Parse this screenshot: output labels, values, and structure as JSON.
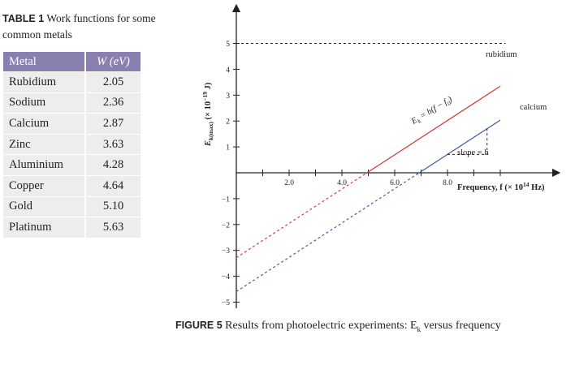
{
  "table": {
    "caption_tag": "TABLE 1",
    "caption_text": "Work functions for some common metals",
    "headers": [
      "Metal",
      "W (eV)"
    ],
    "rows": [
      [
        "Rubidium",
        "2.05"
      ],
      [
        "Sodium",
        "2.36"
      ],
      [
        "Calcium",
        "2.87"
      ],
      [
        "Zinc",
        "3.63"
      ],
      [
        "Aluminium",
        "4.28"
      ],
      [
        "Copper",
        "4.64"
      ],
      [
        "Gold",
        "5.10"
      ],
      [
        "Platinum",
        "5.63"
      ]
    ]
  },
  "figure": {
    "caption_tag": "FIGURE 5",
    "caption_text": "Results from photoelectric experiments: E",
    "caption_sub": "k",
    "caption_tail": " versus frequency"
  },
  "chart_data": {
    "type": "line",
    "xlabel": "Frequency, f (× 10",
    "xlabel_exp": "14",
    "xlabel_tail": " Hz)",
    "ylabel": "E",
    "ylabel_sub": "k(max)",
    "ylabel_tail": " (× 10",
    "ylabel_exp": "−19",
    "ylabel_end": " J)",
    "x_ticks": [
      {
        "value": 2.0,
        "label": "2.0"
      },
      {
        "value": 4.0,
        "label": "4.0"
      },
      {
        "value": 6.0,
        "label": "6.0"
      },
      {
        "value": 8.0,
        "label": "8.0"
      }
    ],
    "y_ticks": [
      {
        "value": 5,
        "label": "5"
      },
      {
        "value": 4,
        "label": "4"
      },
      {
        "value": 3,
        "label": "3"
      },
      {
        "value": 2,
        "label": "2"
      },
      {
        "value": 1,
        "label": "1"
      },
      {
        "value": -1,
        "label": "−1"
      },
      {
        "value": -2,
        "label": "−2"
      },
      {
        "value": -3,
        "label": "−3"
      },
      {
        "value": -4,
        "label": "−4"
      },
      {
        "value": -5,
        "label": "−5"
      }
    ],
    "xlim": [
      0,
      10.2
    ],
    "ylim": [
      -5,
      5.5
    ],
    "series": [
      {
        "name": "rubidium",
        "color": "#d63a3a",
        "x0": 4.95,
        "slope": 0.6626,
        "x_start": 0,
        "x_end": 10.0
      },
      {
        "name": "calcium",
        "color": "#3e5fa0",
        "x0": 6.93,
        "slope": 0.6626,
        "x_start": 0,
        "x_end": 10.0
      }
    ],
    "threshold_line": {
      "y": 5,
      "x_start": 0,
      "x_end": 10.2
    },
    "annotations": {
      "equation": "E",
      "equation_sub": "k",
      "equation_tail": " = h(f − f",
      "equation_sub2": "0",
      "equation_end": ")",
      "slope": "slope = h"
    },
    "slope_triangle": {
      "x1": 8.0,
      "x2": 9.5
    }
  }
}
